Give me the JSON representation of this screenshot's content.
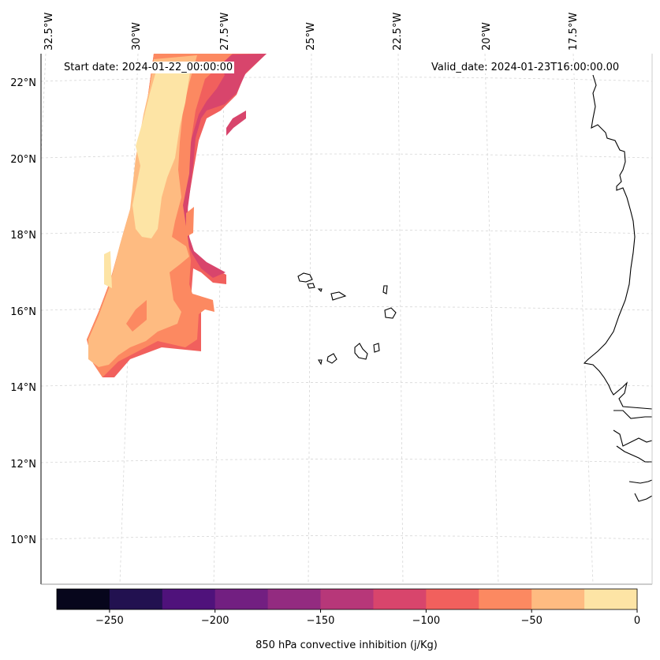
{
  "header": {
    "start_date": "Start date: 2024-01-22_00:00:00",
    "valid_date": "Valid_date: 2024-01-23T16:00:00.00"
  },
  "map": {
    "lon_labels": [
      "32.5°W",
      "30°W",
      "27.5°W",
      "25°W",
      "22.5°W",
      "20°W",
      "17.5°W"
    ],
    "lat_labels": [
      "22°N",
      "20°N",
      "18°N",
      "16°N",
      "14°N",
      "12°N",
      "10°N"
    ],
    "gridlines": true,
    "coastline_color": "#000000",
    "gridline_color": "#d0d0d0"
  },
  "colorbar": {
    "label": "850 hPa convective inhibition (j/Kg)",
    "tick_labels": [
      "−250",
      "−200",
      "−150",
      "−100",
      "−50",
      "0"
    ],
    "levels": [
      -275,
      -250,
      -225,
      -200,
      -175,
      -150,
      -125,
      -100,
      -75,
      -50,
      -25,
      0
    ],
    "colors": [
      "#07061c",
      "#221150",
      "#4f127b",
      "#721f81",
      "#932b80",
      "#b73779",
      "#d8456c",
      "#f1605d",
      "#fc8961",
      "#febb81",
      "#fde4a5"
    ]
  }
}
